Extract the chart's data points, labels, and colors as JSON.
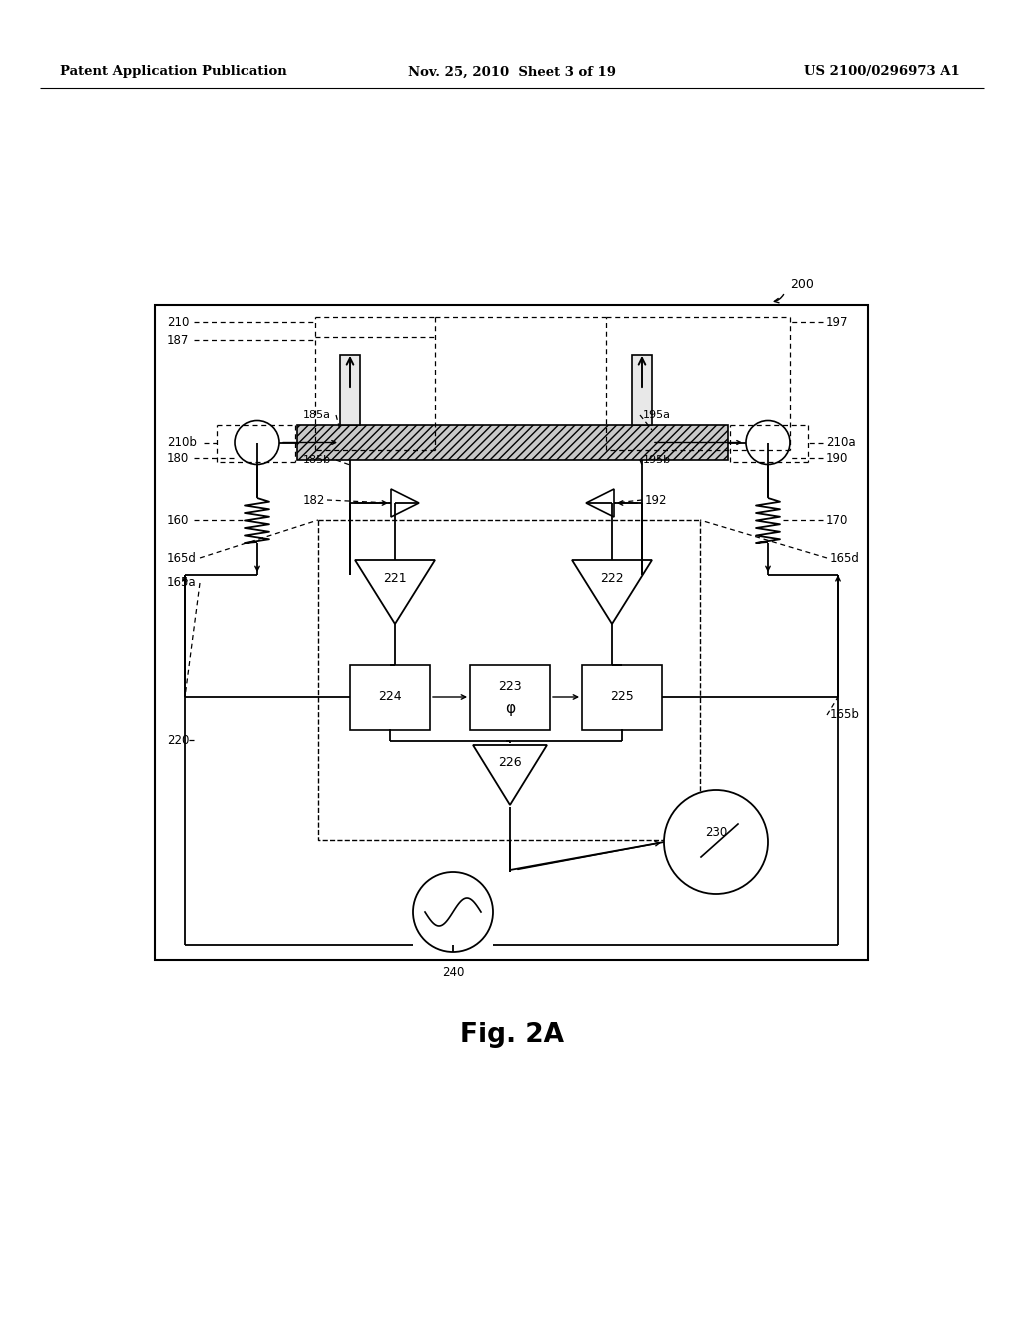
{
  "header_left": "Patent Application Publication",
  "header_mid": "Nov. 25, 2010  Sheet 3 of 19",
  "header_right": "US 2100/0296973 A1",
  "fig_label": "Fig. 2A",
  "bg_color": "#ffffff"
}
